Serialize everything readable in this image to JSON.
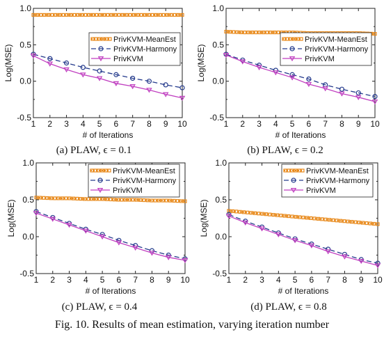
{
  "figure_caption": "Fig. 10.  Results of mean estimation, varying iteration number",
  "colors": {
    "meanest": "#e8891a",
    "harmony": "#243a8c",
    "privkvm": "#c03fc0"
  },
  "legend_labels": [
    "PrivKVM-MeanEst",
    "PrivKVM-Harmony",
    "PrivKVM"
  ],
  "chart_data": [
    {
      "type": "line",
      "caption": "(a) PLAW,  ϵ = 0.1",
      "xlabel": "# of Iterations",
      "ylabel": "Log(MSE)",
      "x": [
        1,
        2,
        3,
        4,
        5,
        6,
        7,
        8,
        9,
        10
      ],
      "xlim": [
        1,
        10
      ],
      "ylim": [
        -0.5,
        1.0
      ],
      "yticks": [
        "1.0",
        "0.5",
        "0.0",
        "-0.5"
      ],
      "legend_position": "top-right",
      "series": [
        {
          "name": "PrivKVM-MeanEst",
          "values": [
            0.91,
            0.91,
            0.91,
            0.91,
            0.91,
            0.91,
            0.91,
            0.91,
            0.91,
            0.91
          ]
        },
        {
          "name": "PrivKVM-Harmony",
          "values": [
            0.37,
            0.31,
            0.25,
            0.19,
            0.14,
            0.09,
            0.04,
            0.0,
            -0.05,
            -0.09
          ]
        },
        {
          "name": "PrivKVM",
          "values": [
            0.35,
            0.24,
            0.16,
            0.09,
            0.04,
            -0.03,
            -0.07,
            -0.12,
            -0.18,
            -0.23
          ]
        }
      ]
    },
    {
      "type": "line",
      "caption": "(b) PLAW,  ϵ = 0.2",
      "xlabel": "# of Iterations",
      "ylabel": "Log(MSE)",
      "x": [
        1,
        2,
        3,
        4,
        5,
        6,
        7,
        8,
        9,
        10
      ],
      "xlim": [
        1,
        10
      ],
      "ylim": [
        -0.5,
        1.0
      ],
      "yticks": [
        "1.0",
        "0.5",
        "0.0",
        "-0.5"
      ],
      "legend_position": "top-right",
      "series": [
        {
          "name": "PrivKVM-MeanEst",
          "values": [
            0.68,
            0.67,
            0.67,
            0.67,
            0.67,
            0.66,
            0.66,
            0.66,
            0.66,
            0.65
          ]
        },
        {
          "name": "PrivKVM-Harmony",
          "values": [
            0.37,
            0.29,
            0.22,
            0.15,
            0.09,
            0.03,
            -0.05,
            -0.11,
            -0.16,
            -0.21
          ]
        },
        {
          "name": "PrivKVM",
          "values": [
            0.36,
            0.27,
            0.19,
            0.12,
            0.05,
            -0.04,
            -0.1,
            -0.17,
            -0.22,
            -0.28
          ]
        }
      ]
    },
    {
      "type": "line",
      "caption": "(c) PLAW,  ϵ = 0.4",
      "xlabel": "# of Iterations",
      "ylabel": "Log(MSE)",
      "x": [
        1,
        2,
        3,
        4,
        5,
        6,
        7,
        8,
        9,
        10
      ],
      "xlim": [
        1,
        10
      ],
      "ylim": [
        -0.5,
        1.0
      ],
      "yticks": [
        "1.0",
        "0.5",
        "0.0",
        "-0.5"
      ],
      "legend_position": "top-right",
      "series": [
        {
          "name": "PrivKVM-MeanEst",
          "values": [
            0.53,
            0.52,
            0.52,
            0.51,
            0.51,
            0.5,
            0.5,
            0.49,
            0.49,
            0.48
          ]
        },
        {
          "name": "PrivKVM-Harmony",
          "values": [
            0.34,
            0.26,
            0.18,
            0.1,
            0.03,
            -0.05,
            -0.12,
            -0.19,
            -0.25,
            -0.3
          ]
        },
        {
          "name": "PrivKVM",
          "values": [
            0.32,
            0.24,
            0.16,
            0.08,
            0.0,
            -0.08,
            -0.15,
            -0.22,
            -0.28,
            -0.32
          ]
        }
      ]
    },
    {
      "type": "line",
      "caption": "(d) PLAW,  ϵ = 0.8",
      "xlabel": "# of Iterations",
      "ylabel": "Log(MSE)",
      "x": [
        1,
        2,
        3,
        4,
        5,
        6,
        7,
        8,
        9,
        10
      ],
      "xlim": [
        1,
        10
      ],
      "ylim": [
        -0.5,
        1.0
      ],
      "yticks": [
        "1.0",
        "0.5",
        "0.0",
        "-0.5"
      ],
      "legend_position": "top-right",
      "series": [
        {
          "name": "PrivKVM-MeanEst",
          "values": [
            0.35,
            0.33,
            0.31,
            0.29,
            0.27,
            0.25,
            0.23,
            0.21,
            0.19,
            0.17
          ]
        },
        {
          "name": "PrivKVM-Harmony",
          "values": [
            0.3,
            0.21,
            0.13,
            0.05,
            -0.03,
            -0.1,
            -0.17,
            -0.24,
            -0.31,
            -0.36
          ]
        },
        {
          "name": "PrivKVM",
          "values": [
            0.28,
            0.19,
            0.11,
            0.03,
            -0.05,
            -0.12,
            -0.2,
            -0.27,
            -0.33,
            -0.39
          ]
        }
      ]
    }
  ]
}
